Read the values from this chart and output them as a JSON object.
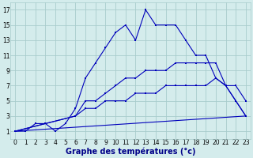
{
  "bg_color": "#d4ecec",
  "line_color": "#0000bb",
  "grid_color": "#a8cccc",
  "xlim_min": -0.5,
  "xlim_max": 23.5,
  "ylim_min": 0,
  "ylim_max": 18,
  "xticks": [
    0,
    1,
    2,
    3,
    4,
    5,
    6,
    7,
    8,
    9,
    10,
    11,
    12,
    13,
    14,
    15,
    16,
    17,
    18,
    19,
    20,
    21,
    22,
    23
  ],
  "yticks": [
    1,
    3,
    5,
    7,
    9,
    11,
    13,
    15,
    17
  ],
  "line1_x": [
    0,
    1,
    2,
    3,
    4,
    5,
    6,
    7,
    8,
    9,
    10,
    11,
    12,
    13,
    14,
    15,
    16,
    17,
    18,
    19,
    20,
    21,
    22,
    23
  ],
  "line1_y": [
    1,
    1,
    2,
    2,
    1,
    2,
    4,
    8,
    10,
    12,
    14,
    15,
    13,
    17,
    15,
    15,
    15,
    13,
    11,
    11,
    8,
    7,
    5,
    3
  ],
  "line2_x": [
    0,
    6,
    7,
    8,
    9,
    10,
    11,
    12,
    13,
    14,
    15,
    16,
    17,
    18,
    19,
    20,
    21,
    22,
    23
  ],
  "line2_y": [
    1,
    3,
    5,
    5,
    6,
    7,
    8,
    8,
    9,
    9,
    9,
    10,
    10,
    10,
    10,
    10,
    7,
    5,
    3
  ],
  "line3_x": [
    0,
    6,
    7,
    8,
    9,
    10,
    11,
    12,
    13,
    14,
    15,
    16,
    17,
    18,
    19,
    20,
    21,
    22,
    23
  ],
  "line3_y": [
    1,
    3,
    4,
    4,
    5,
    5,
    5,
    6,
    6,
    6,
    7,
    7,
    7,
    7,
    7,
    8,
    7,
    7,
    5
  ],
  "line4_x": [
    0,
    23
  ],
  "line4_y": [
    1,
    3
  ],
  "xlabel": "Graphe des températures (°c)",
  "xlabel_fontsize": 7,
  "tick_fontsize": 5.5
}
